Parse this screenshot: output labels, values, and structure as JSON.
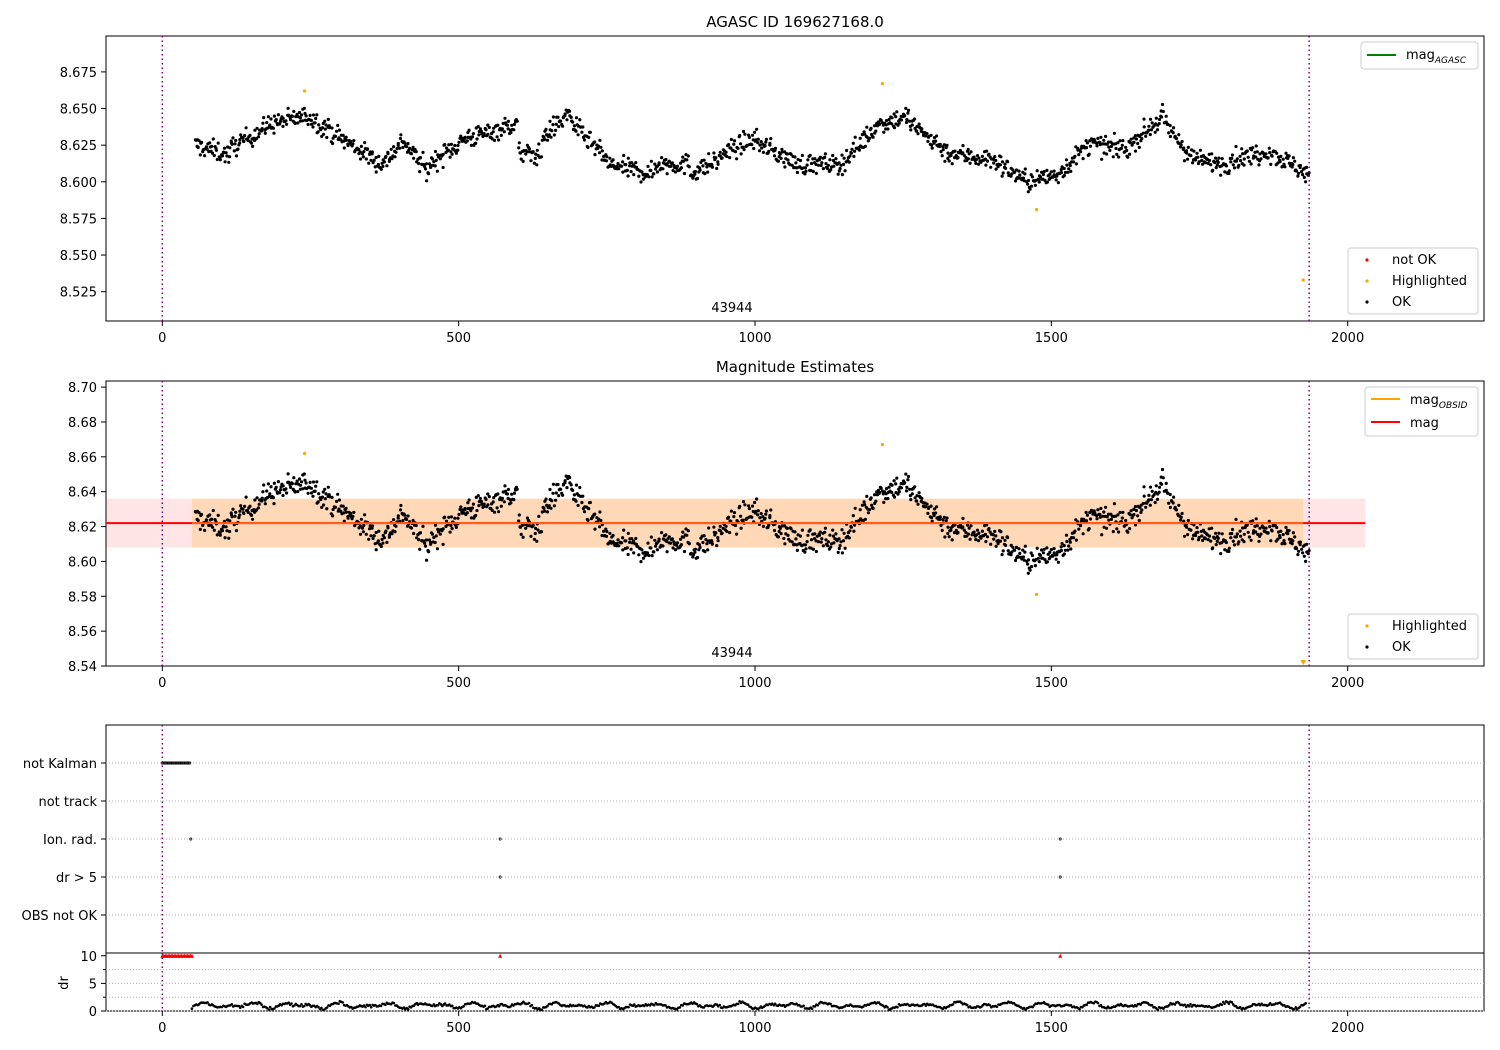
{
  "chart_data": [
    {
      "type": "scatter",
      "title": "AGASC ID 169627168.0",
      "xlim": [
        -95,
        2230
      ],
      "ylim": [
        8.505,
        8.6995
      ],
      "xticks": [
        "0",
        "500",
        "1000",
        "1500",
        "2000"
      ],
      "yticks": [
        "8.525",
        "8.550",
        "8.575",
        "8.600",
        "8.625",
        "8.650",
        "8.675"
      ],
      "vlines": [
        0,
        1935
      ],
      "annotation": "43944",
      "legend_lines": [
        {
          "label": "mag",
          "sub": "AGASC",
          "color": "#008000"
        }
      ],
      "legend_points": [
        {
          "label": "not OK",
          "color": "#ff0000"
        },
        {
          "label": "Highlighted",
          "color": "#ffa500"
        },
        {
          "label": "OK",
          "color": "#000000"
        }
      ],
      "highlighted": [
        [
          240,
          8.662
        ],
        [
          1215,
          8.667
        ],
        [
          1475,
          8.581
        ],
        [
          1925,
          8.533
        ]
      ],
      "ok_segments": [
        [
          55,
          8.625,
          8.618,
          60
        ],
        [
          115,
          8.623,
          8.64,
          70
        ],
        [
          185,
          8.64,
          8.645,
          60
        ],
        [
          245,
          8.645,
          8.63,
          55
        ],
        [
          300,
          8.63,
          8.612,
          70
        ],
        [
          370,
          8.612,
          8.63,
          40
        ],
        [
          410,
          8.625,
          8.606,
          40
        ],
        [
          450,
          8.612,
          8.632,
          70
        ],
        [
          520,
          8.63,
          8.64,
          80
        ],
        [
          600,
          8.62,
          8.618,
          40
        ],
        [
          640,
          8.63,
          8.648,
          50
        ],
        [
          690,
          8.64,
          8.615,
          60
        ],
        [
          750,
          8.612,
          8.605,
          80
        ],
        [
          830,
          8.612,
          8.612,
          60
        ],
        [
          890,
          8.606,
          8.615,
          50
        ],
        [
          940,
          8.618,
          8.63,
          60
        ],
        [
          1000,
          8.628,
          8.612,
          70
        ],
        [
          1070,
          8.612,
          8.612,
          80
        ],
        [
          1150,
          8.615,
          8.64,
          60
        ],
        [
          1210,
          8.64,
          8.645,
          50
        ],
        [
          1260,
          8.64,
          8.622,
          60
        ],
        [
          1320,
          8.62,
          8.615,
          80
        ],
        [
          1400,
          8.615,
          8.6,
          60
        ],
        [
          1460,
          8.6,
          8.605,
          50
        ],
        [
          1510,
          8.605,
          8.628,
          60
        ],
        [
          1570,
          8.625,
          8.622,
          60
        ],
        [
          1630,
          8.625,
          8.645,
          60
        ],
        [
          1690,
          8.64,
          8.615,
          50
        ],
        [
          1740,
          8.615,
          8.612,
          60
        ],
        [
          1800,
          8.615,
          8.62,
          60
        ],
        [
          1860,
          8.622,
          8.605,
          75
        ]
      ]
    },
    {
      "type": "scatter",
      "title": "Magnitude Estimates",
      "xlim": [
        -95,
        2230
      ],
      "ylim": [
        8.54,
        8.7035
      ],
      "xticks": [
        "0",
        "500",
        "1000",
        "1500",
        "2000"
      ],
      "yticks": [
        "8.54",
        "8.56",
        "8.58",
        "8.60",
        "8.62",
        "8.64",
        "8.66",
        "8.68",
        "8.70"
      ],
      "vlines": [
        0,
        1935
      ],
      "annotation": "43944",
      "mag": 8.622,
      "band": [
        8.608,
        8.636
      ],
      "band_xrange": [
        -95,
        2030
      ],
      "legend_lines": [
        {
          "label": "mag",
          "sub": "OBSID",
          "color": "#ffa500"
        },
        {
          "label": "mag",
          "sub": "",
          "color": "#ff0000"
        }
      ],
      "legend_points": [
        {
          "label": "Highlighted",
          "color": "#ffa500"
        },
        {
          "label": "OK",
          "color": "#000000"
        }
      ]
    },
    {
      "type": "scatter",
      "xlim": [
        -95,
        2230
      ],
      "categories": [
        "not Kalman",
        "not track",
        "Ion. rad.",
        "dr > 5",
        "OBS not OK"
      ],
      "events": {
        "not Kalman": [
          0,
          48
        ],
        "Ion. rad.": [
          48,
          570,
          1515
        ],
        "dr > 5": [
          570,
          1515
        ]
      },
      "vlines": [
        0,
        1935
      ]
    },
    {
      "type": "scatter",
      "ylabel": "dr",
      "xlim": [
        -95,
        2230
      ],
      "ylim": [
        0,
        10.5
      ],
      "xticks": [
        "0",
        "500",
        "1000",
        "1500",
        "2000"
      ],
      "yticks": [
        "0",
        "5",
        "10"
      ],
      "clipped_markers": [
        570,
        1515
      ],
      "vlines": [
        0,
        1935
      ]
    }
  ]
}
